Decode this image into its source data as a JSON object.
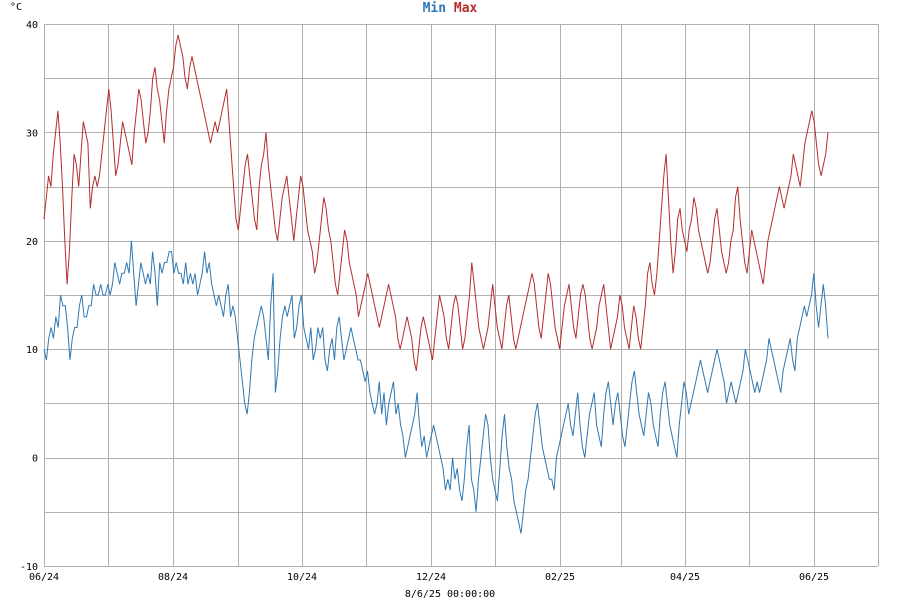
{
  "chart_data": {
    "type": "line",
    "ylabel": "°C",
    "ylim": [
      -10,
      40
    ],
    "yticks": [
      -10,
      0,
      10,
      20,
      30,
      40
    ],
    "xticks": [
      "06/24",
      "08/24",
      "10/24",
      "12/24",
      "02/25",
      "04/25",
      "06/25"
    ],
    "footer": "8/6/25 00:00:00",
    "grid": true,
    "legend_position": "top-center",
    "series": [
      {
        "name": "Min",
        "color": "#2e78b4",
        "values": [
          10,
          9,
          11,
          12,
          11,
          13,
          12,
          15,
          14,
          14,
          12,
          9,
          11,
          12,
          12,
          14,
          15,
          13,
          13,
          14,
          14,
          16,
          15,
          15,
          16,
          15,
          15,
          16,
          15,
          16,
          18,
          17,
          16,
          17,
          17,
          18,
          17,
          20,
          17,
          14,
          16,
          18,
          17,
          16,
          17,
          16,
          19,
          17,
          14,
          18,
          17,
          18,
          18,
          19,
          19,
          17,
          18,
          17,
          17,
          16,
          18,
          16,
          17,
          16,
          17,
          15,
          16,
          17,
          19,
          17,
          18,
          16,
          15,
          14,
          15,
          14,
          13,
          15,
          16,
          13,
          14,
          13,
          11,
          9,
          7,
          5,
          4,
          6,
          9,
          11,
          12,
          13,
          14,
          13,
          11,
          9,
          14,
          17,
          6,
          8,
          11,
          13,
          14,
          13,
          14,
          15,
          11,
          12,
          14,
          15,
          12,
          11,
          10,
          12,
          9,
          10,
          12,
          11,
          12,
          9,
          8,
          10,
          11,
          9,
          12,
          13,
          11,
          9,
          10,
          11,
          12,
          11,
          10,
          9,
          9,
          8,
          7,
          8,
          6,
          5,
          4,
          5,
          7,
          4,
          6,
          3,
          5,
          6,
          7,
          4,
          5,
          3,
          2,
          0,
          1,
          2,
          3,
          4,
          6,
          3,
          1,
          2,
          0,
          1,
          2,
          3,
          2,
          1,
          0,
          -1,
          -3,
          -2,
          -3,
          0,
          -2,
          -1,
          -3,
          -4,
          -2,
          1,
          3,
          -2,
          -3,
          -5,
          -2,
          0,
          2,
          4,
          3,
          0,
          -2,
          -3,
          -4,
          -1,
          2,
          4,
          1,
          -1,
          -2,
          -4,
          -5,
          -6,
          -7,
          -5,
          -3,
          -2,
          0,
          2,
          4,
          5,
          3,
          1,
          0,
          -1,
          -2,
          -2,
          -3,
          0,
          1,
          2,
          3,
          4,
          5,
          3,
          2,
          4,
          6,
          3,
          1,
          0,
          2,
          4,
          5,
          6,
          3,
          2,
          1,
          4,
          6,
          7,
          5,
          3,
          5,
          6,
          4,
          2,
          1,
          3,
          5,
          7,
          8,
          6,
          4,
          3,
          2,
          4,
          6,
          5,
          3,
          2,
          1,
          4,
          6,
          7,
          5,
          3,
          2,
          1,
          0,
          3,
          5,
          7,
          6,
          4,
          5,
          6,
          7,
          8,
          9,
          8,
          7,
          6,
          7,
          8,
          9,
          10,
          9,
          8,
          7,
          5,
          6,
          7,
          6,
          5,
          6,
          7,
          8,
          10,
          9,
          8,
          7,
          6,
          7,
          6,
          7,
          8,
          9,
          11,
          10,
          9,
          8,
          7,
          6,
          8,
          9,
          10,
          11,
          9,
          8,
          11,
          12,
          13,
          14,
          13,
          14,
          15,
          17,
          14,
          12,
          14,
          16,
          14,
          11
        ]
      },
      {
        "name": "Max",
        "color": "#b42d2d",
        "values": [
          22,
          24,
          26,
          25,
          28,
          30,
          32,
          29,
          25,
          20,
          16,
          19,
          24,
          28,
          27,
          25,
          28,
          31,
          30,
          29,
          23,
          25,
          26,
          25,
          26,
          28,
          30,
          32,
          34,
          32,
          29,
          26,
          27,
          29,
          31,
          30,
          29,
          28,
          27,
          30,
          32,
          34,
          33,
          31,
          29,
          30,
          32,
          35,
          36,
          34,
          33,
          31,
          29,
          32,
          34,
          35,
          36,
          38,
          39,
          38,
          37,
          35,
          34,
          36,
          37,
          36,
          35,
          34,
          33,
          32,
          31,
          30,
          29,
          30,
          31,
          30,
          31,
          32,
          33,
          34,
          31,
          28,
          25,
          22,
          21,
          23,
          25,
          27,
          28,
          26,
          24,
          22,
          21,
          25,
          27,
          28,
          30,
          27,
          25,
          23,
          21,
          20,
          22,
          24,
          25,
          26,
          24,
          22,
          20,
          22,
          24,
          26,
          25,
          23,
          21,
          20,
          19,
          17,
          18,
          20,
          22,
          24,
          23,
          21,
          20,
          18,
          16,
          15,
          17,
          19,
          21,
          20,
          18,
          17,
          16,
          15,
          13,
          14,
          15,
          16,
          17,
          16,
          15,
          14,
          13,
          12,
          13,
          14,
          15,
          16,
          15,
          14,
          13,
          11,
          10,
          11,
          12,
          13,
          12,
          11,
          9,
          8,
          10,
          12,
          13,
          12,
          11,
          10,
          9,
          11,
          13,
          15,
          14,
          13,
          11,
          10,
          12,
          14,
          15,
          14,
          12,
          10,
          11,
          13,
          15,
          18,
          16,
          14,
          12,
          11,
          10,
          11,
          12,
          14,
          16,
          14,
          12,
          11,
          10,
          12,
          14,
          15,
          13,
          11,
          10,
          11,
          12,
          13,
          14,
          15,
          16,
          17,
          16,
          14,
          12,
          11,
          13,
          15,
          17,
          16,
          14,
          12,
          11,
          10,
          12,
          14,
          15,
          16,
          14,
          12,
          11,
          13,
          15,
          16,
          15,
          13,
          11,
          10,
          11,
          12,
          14,
          15,
          16,
          14,
          12,
          10,
          11,
          12,
          13,
          15,
          14,
          12,
          11,
          10,
          12,
          14,
          13,
          11,
          10,
          12,
          14,
          17,
          18,
          16,
          15,
          17,
          20,
          23,
          26,
          28,
          24,
          20,
          17,
          19,
          22,
          23,
          21,
          20,
          19,
          21,
          22,
          24,
          23,
          21,
          20,
          19,
          18,
          17,
          18,
          20,
          22,
          23,
          21,
          19,
          18,
          17,
          18,
          20,
          21,
          24,
          25,
          22,
          20,
          18,
          17,
          19,
          21,
          20,
          19,
          18,
          17,
          16,
          18,
          20,
          21,
          22,
          23,
          24,
          25,
          24,
          23,
          24,
          25,
          26,
          28,
          27,
          26,
          25,
          27,
          29,
          30,
          31,
          32,
          31,
          29,
          27,
          26,
          27,
          28,
          30
        ]
      }
    ]
  }
}
